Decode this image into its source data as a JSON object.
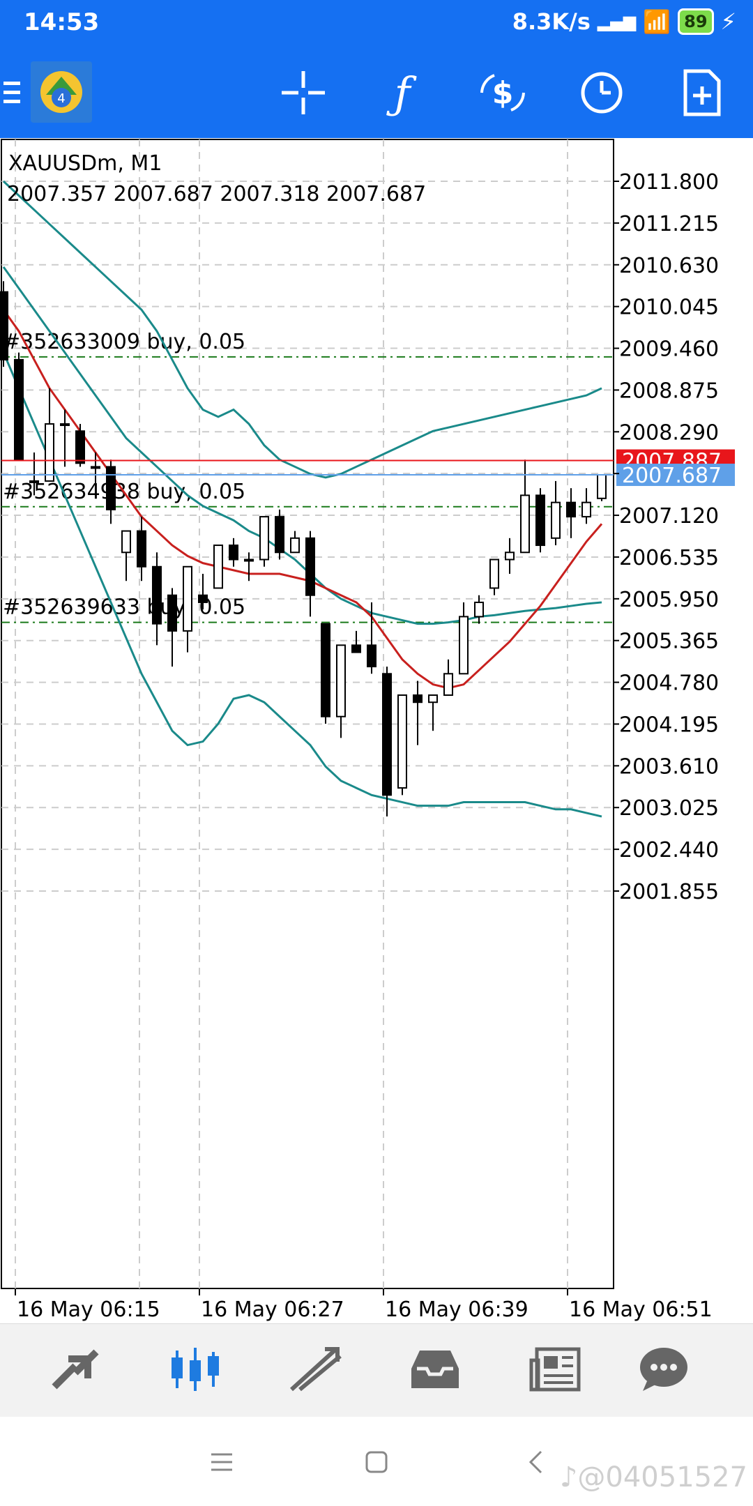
{
  "status": {
    "time": "14:53",
    "speed": "8.3K/s",
    "network": "HD",
    "battery": "89"
  },
  "chart_data": {
    "type": "candlestick",
    "symbol_title": "XAUUSDm, M1",
    "ohlc_header": "2007.357 2007.687 2007.318 2007.687",
    "y_ticks": [
      "2011.800",
      "2011.215",
      "2010.630",
      "2010.045",
      "2009.460",
      "2008.875",
      "2008.290",
      "2007.120",
      "2006.535",
      "2005.950",
      "2005.365",
      "2004.780",
      "2004.195",
      "2003.610",
      "2003.025",
      "2002.440",
      "2001.855"
    ],
    "x_ticks": [
      "16 May 06:15",
      "16 May 06:27",
      "16 May 06:39",
      "16 May 06:51"
    ],
    "ylim": [
      1801.0,
      2011.9
    ],
    "price_markers": [
      {
        "label": "2007.887",
        "value": 2007.887,
        "color": "#e8161b"
      },
      {
        "label": "2007.687",
        "value": 2007.687,
        "color": "#5fa0e8"
      }
    ],
    "order_lines": [
      {
        "label": "#352633009 buy, 0.05",
        "value": 2009.34
      },
      {
        "label": "#352634938 buy, 0.05",
        "value": 2007.24
      },
      {
        "label": "#352639633 buy, 0.05",
        "value": 2005.62
      }
    ],
    "candles": [
      [
        2010.25,
        2010.4,
        2009.2,
        2009.3
      ],
      [
        2009.3,
        2009.4,
        2007.9,
        2007.9
      ],
      [
        2007.6,
        2008.0,
        2007.4,
        2007.6
      ],
      [
        2007.6,
        2008.9,
        2007.6,
        2008.4
      ],
      [
        2008.4,
        2008.6,
        2007.8,
        2008.4
      ],
      [
        2008.3,
        2008.4,
        2007.8,
        2007.85
      ],
      [
        2007.8,
        2008.0,
        2007.4,
        2007.8
      ],
      [
        2007.8,
        2007.9,
        2007.0,
        2007.2
      ],
      [
        2006.6,
        2006.9,
        2006.2,
        2006.9
      ],
      [
        2006.9,
        2007.1,
        2006.2,
        2006.4
      ],
      [
        2006.4,
        2006.6,
        2005.3,
        2005.6
      ],
      [
        2006.0,
        2006.1,
        2005.0,
        2005.5
      ],
      [
        2005.5,
        2006.3,
        2005.2,
        2006.4
      ],
      [
        2006.0,
        2006.3,
        2005.8,
        2005.9
      ],
      [
        2006.1,
        2006.7,
        2006.1,
        2006.7
      ],
      [
        2006.7,
        2006.8,
        2006.4,
        2006.5
      ],
      [
        2006.5,
        2006.6,
        2006.2,
        2006.5
      ],
      [
        2006.5,
        2007.1,
        2006.4,
        2007.1
      ],
      [
        2007.1,
        2007.2,
        2006.5,
        2006.6
      ],
      [
        2006.6,
        2006.9,
        2006.6,
        2006.8
      ],
      [
        2006.8,
        2006.9,
        2005.7,
        2006.0
      ],
      [
        2005.6,
        2005.6,
        2004.2,
        2004.3
      ],
      [
        2004.3,
        2005.3,
        2004.0,
        2005.3
      ],
      [
        2005.3,
        2005.5,
        2005.2,
        2005.2
      ],
      [
        2005.3,
        2005.9,
        2004.9,
        2005.0
      ],
      [
        2004.9,
        2005.0,
        2002.9,
        2003.2
      ],
      [
        2003.3,
        2004.6,
        2003.2,
        2004.6
      ],
      [
        2004.6,
        2004.8,
        2003.9,
        2004.5
      ],
      [
        2004.5,
        2004.6,
        2004.1,
        2004.6
      ],
      [
        2004.6,
        2005.1,
        2004.6,
        2004.9
      ],
      [
        2004.9,
        2005.9,
        2004.9,
        2005.7
      ],
      [
        2005.7,
        2006.0,
        2005.6,
        2005.9
      ],
      [
        2006.1,
        2006.4,
        2006.0,
        2006.5
      ],
      [
        2006.5,
        2006.8,
        2006.3,
        2006.6
      ],
      [
        2006.6,
        2007.9,
        2006.6,
        2007.4
      ],
      [
        2007.4,
        2007.5,
        2006.6,
        2006.7
      ],
      [
        2006.8,
        2007.6,
        2006.7,
        2007.3
      ],
      [
        2007.3,
        2007.5,
        2006.8,
        2007.1
      ],
      [
        2007.1,
        2007.5,
        2007.0,
        2007.3
      ],
      [
        2007.357,
        2007.687,
        2007.318,
        2007.687
      ]
    ],
    "ma_red": [
      2010.0,
      2009.7,
      2009.3,
      2008.9,
      2008.6,
      2008.3,
      2008.0,
      2007.7,
      2007.4,
      2007.1,
      2006.9,
      2006.7,
      2006.55,
      2006.45,
      2006.4,
      2006.35,
      2006.3,
      2006.3,
      2006.3,
      2006.25,
      2006.2,
      2006.1,
      2006.0,
      2005.9,
      2005.7,
      2005.4,
      2005.1,
      2004.9,
      2004.75,
      2004.7,
      2004.75,
      2004.95,
      2005.15,
      2005.35,
      2005.6,
      2005.85,
      2006.15,
      2006.45,
      2006.75,
      2007.0
    ],
    "bb_upper": [
      2011.8,
      2011.6,
      2011.4,
      2011.2,
      2011.0,
      2010.8,
      2010.6,
      2010.4,
      2010.2,
      2010.0,
      2009.7,
      2009.3,
      2008.9,
      2008.6,
      2008.5,
      2008.6,
      2008.4,
      2008.1,
      2007.9,
      2007.8,
      2007.7,
      2007.65,
      2007.7,
      2007.8,
      2007.9,
      2008.0,
      2008.1,
      2008.2,
      2008.3,
      2008.35,
      2008.4,
      2008.45,
      2008.5,
      2008.55,
      2008.6,
      2008.65,
      2008.7,
      2008.75,
      2008.8,
      2008.9
    ],
    "bb_middle": [
      2010.6,
      2010.3,
      2010.0,
      2009.7,
      2009.4,
      2009.1,
      2008.8,
      2008.5,
      2008.2,
      2008.0,
      2007.8,
      2007.6,
      2007.4,
      2007.25,
      2007.15,
      2007.05,
      2006.9,
      2006.8,
      2006.65,
      2006.5,
      2006.3,
      2006.1,
      2005.95,
      2005.85,
      2005.75,
      2005.7,
      2005.65,
      2005.6,
      2005.6,
      2005.62,
      2005.65,
      2005.7,
      2005.72,
      2005.75,
      2005.78,
      2005.8,
      2005.82,
      2005.85,
      2005.88,
      2005.9
    ],
    "bb_lower": [
      2009.4,
      2008.9,
      2008.4,
      2007.9,
      2007.4,
      2006.9,
      2006.4,
      2005.9,
      2005.4,
      2004.9,
      2004.5,
      2004.1,
      2003.9,
      2003.95,
      2004.2,
      2004.55,
      2004.6,
      2004.5,
      2004.3,
      2004.1,
      2003.9,
      2003.6,
      2003.4,
      2003.3,
      2003.2,
      2003.15,
      2003.1,
      2003.05,
      2003.05,
      2003.05,
      2003.1,
      2003.1,
      2003.1,
      2003.1,
      2003.1,
      2003.05,
      2003.0,
      2003.0,
      2002.95,
      2002.9
    ]
  },
  "nav": {
    "items": [
      "trade",
      "chart",
      "history",
      "inbox",
      "news",
      "chat"
    ]
  },
  "watermark": "♪@04051527"
}
